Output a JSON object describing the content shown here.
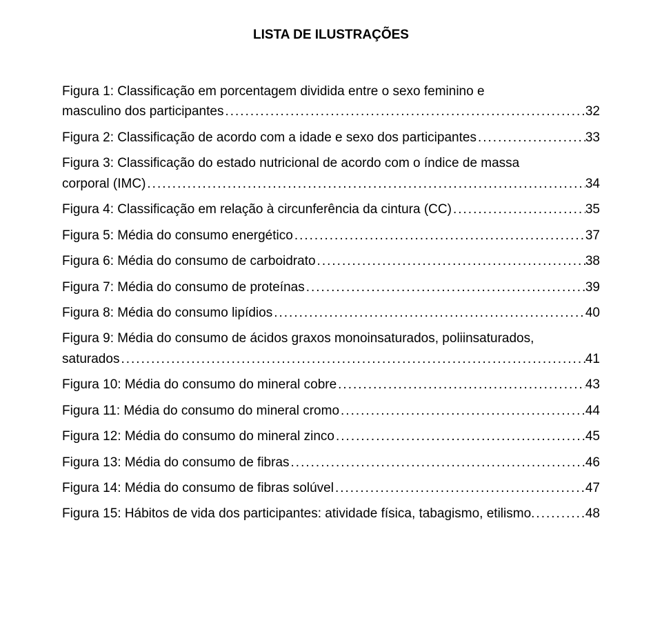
{
  "title": "LISTA DE ILUSTRAÇÕES",
  "entries": [
    {
      "pre": "Figura 1: Classificação em porcentagem dividida entre o sexo feminino e",
      "last": "masculino dos participantes",
      "page": "32"
    },
    {
      "pre": null,
      "last": "Figura 2: Classificação de acordo com a idade e sexo dos participantes",
      "page": "33"
    },
    {
      "pre": "Figura 3: Classificação do estado nutricional de acordo com o índice de massa",
      "last": "corporal (IMC)",
      "page": " 34"
    },
    {
      "pre": null,
      "last": "Figura 4: Classificação em relação à circunferência da cintura (CC)",
      "page": "35"
    },
    {
      "pre": null,
      "last": "Figura 5: Média do consumo energético",
      "page": "37"
    },
    {
      "pre": null,
      "last": "Figura 6: Média do consumo  de carboidrato",
      "page": "38"
    },
    {
      "pre": null,
      "last": "Figura 7: Média do consumo de proteínas",
      "page": "39"
    },
    {
      "pre": null,
      "last": "Figura 8: Média do consumo lipídios ",
      "page": "40"
    },
    {
      "pre": "Figura 9: Média do consumo de ácidos graxos monoinsaturados, poliinsaturados,",
      "last": "saturados",
      "page": " 41"
    },
    {
      "pre": null,
      "last": "Figura 10: Média do consumo do mineral cobre",
      "page": "43"
    },
    {
      "pre": null,
      "last": "Figura 11: Média do consumo do mineral cromo",
      "page": "44"
    },
    {
      "pre": null,
      "last": "Figura 12: Média do consumo do mineral zinco",
      "page": "45"
    },
    {
      "pre": null,
      "last": "Figura 13: Média do consumo de fibras",
      "page": "46"
    },
    {
      "pre": null,
      "last": "Figura 14: Média do consumo de fibras solúvel",
      "page": "47"
    },
    {
      "pre": null,
      "last": "Figura 15: Hábitos de vida dos participantes: atividade física, tabagismo, etilismo.",
      "page": "48"
    }
  ],
  "leader_char": "."
}
